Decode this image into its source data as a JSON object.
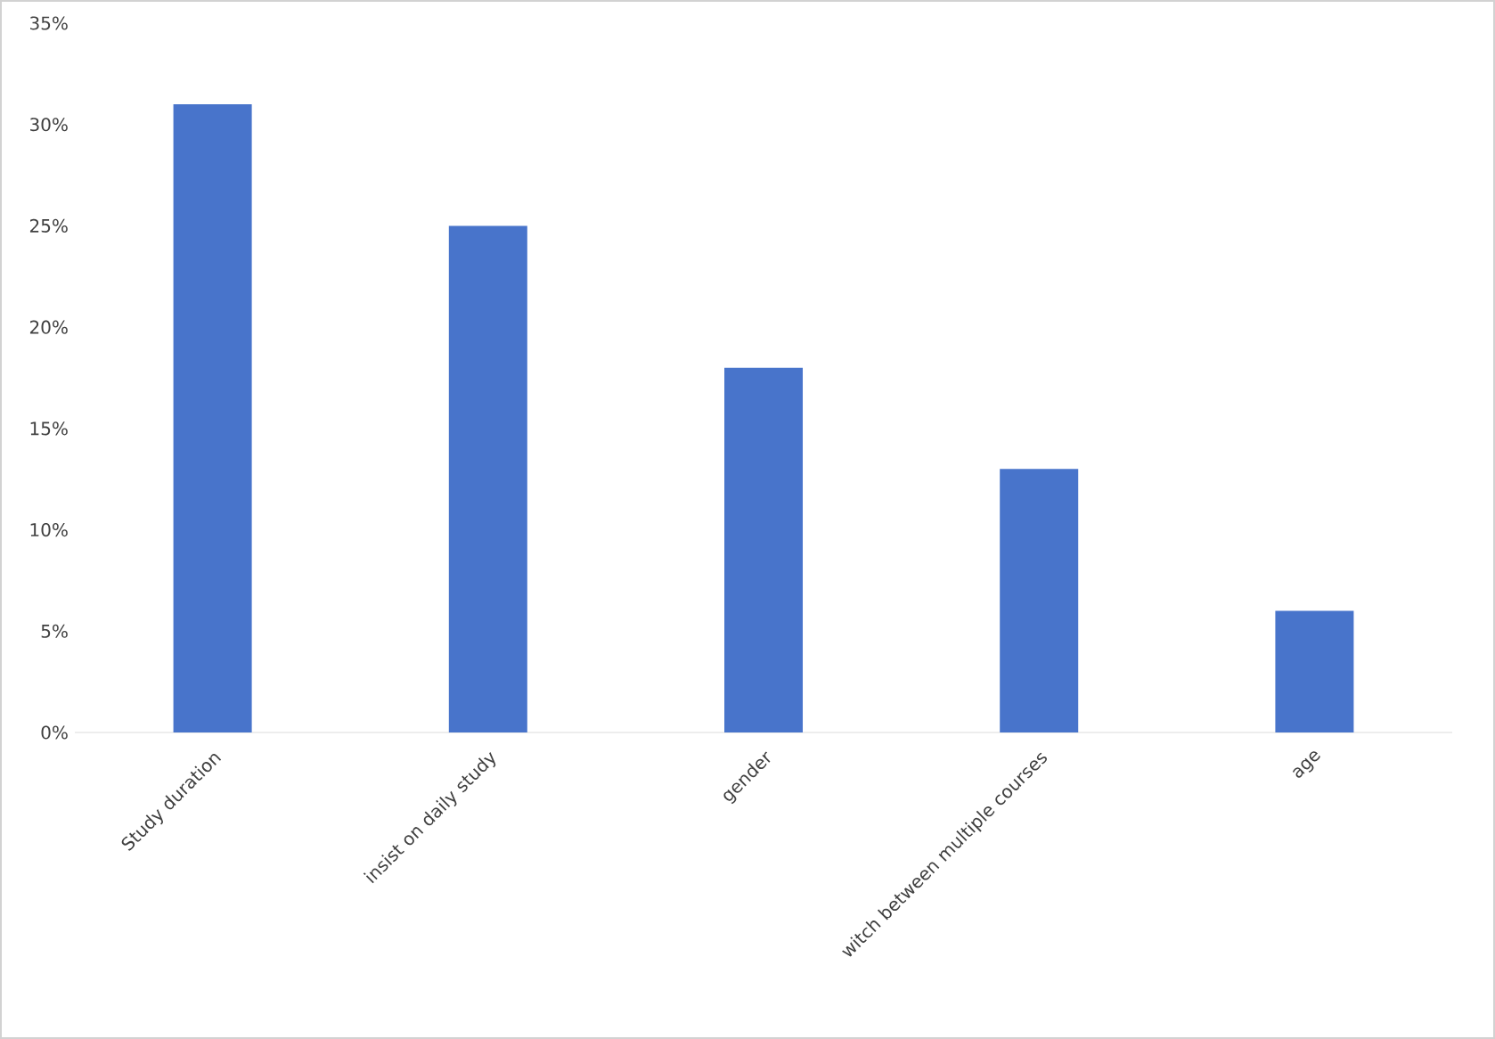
{
  "chart_data": {
    "type": "bar",
    "categories": [
      "Study duration",
      "insist on daily study",
      "gender",
      "witch between multiple courses",
      "age"
    ],
    "values": [
      31,
      25,
      18,
      13,
      6
    ],
    "color": "#4874cb",
    "ylim": [
      0,
      35
    ],
    "yticks": [
      {
        "value": 0,
        "label": "0%"
      },
      {
        "value": 5,
        "label": "5%"
      },
      {
        "value": 10,
        "label": "10%"
      },
      {
        "value": 15,
        "label": "15%"
      },
      {
        "value": 20,
        "label": "20%"
      },
      {
        "value": 25,
        "label": "25%"
      },
      {
        "value": 30,
        "label": "30%"
      },
      {
        "value": 35,
        "label": "35%"
      }
    ],
    "grid": false
  }
}
